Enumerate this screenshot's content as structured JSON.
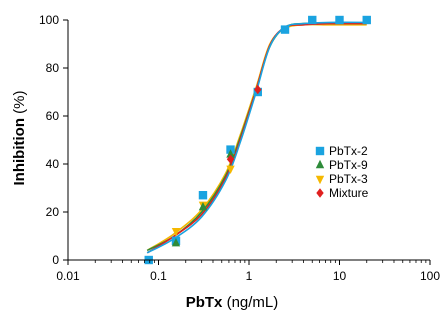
{
  "chart_data": {
    "type": "scatter",
    "title": "",
    "xlabel": {
      "bold": "PbTx",
      "unit": " (ng/mL)"
    },
    "ylabel": {
      "bold": "Inhibition",
      "unit": " (%)"
    },
    "xscale": "log",
    "xlim": [
      0.01,
      100
    ],
    "ylim": [
      0,
      100
    ],
    "xticks": [
      {
        "value": 0.01,
        "label": "0.01"
      },
      {
        "value": 0.1,
        "label": "0.1"
      },
      {
        "value": 1,
        "label": "1"
      },
      {
        "value": 10,
        "label": "10"
      },
      {
        "value": 100,
        "label": "100"
      }
    ],
    "yticks": [
      {
        "value": 0,
        "label": "0"
      },
      {
        "value": 20,
        "label": "20"
      },
      {
        "value": 40,
        "label": "40"
      },
      {
        "value": 60,
        "label": "60"
      },
      {
        "value": 80,
        "label": "80"
      },
      {
        "value": 100,
        "label": "100"
      }
    ],
    "legend_position": "right",
    "grid": false,
    "series": [
      {
        "name": "PbTx-2",
        "marker": "square",
        "color": "#1aa3e0",
        "points": [
          {
            "x": 0.078,
            "y": 0
          },
          {
            "x": 0.156,
            "y": 8
          },
          {
            "x": 0.31,
            "y": 27
          },
          {
            "x": 0.625,
            "y": 46
          },
          {
            "x": 1.25,
            "y": 70
          },
          {
            "x": 2.5,
            "y": 96
          },
          {
            "x": 5,
            "y": 100
          },
          {
            "x": 10,
            "y": 100
          },
          {
            "x": 20,
            "y": 100
          }
        ],
        "fit": [
          {
            "x": 0.075,
            "y": 3
          },
          {
            "x": 0.15,
            "y": 9
          },
          {
            "x": 0.3,
            "y": 18
          },
          {
            "x": 0.55,
            "y": 33
          },
          {
            "x": 0.8,
            "y": 49
          },
          {
            "x": 1.2,
            "y": 70
          },
          {
            "x": 1.7,
            "y": 89
          },
          {
            "x": 2.5,
            "y": 97
          },
          {
            "x": 4,
            "y": 98.5
          },
          {
            "x": 8,
            "y": 99
          },
          {
            "x": 20,
            "y": 99
          }
        ]
      },
      {
        "name": "PbTx-9",
        "marker": "triangle-up",
        "color": "#2e8b3a",
        "points": [
          {
            "x": 0.156,
            "y": 7
          },
          {
            "x": 0.31,
            "y": 22
          },
          {
            "x": 0.625,
            "y": 44
          }
        ],
        "fit": [
          {
            "x": 0.075,
            "y": 4
          },
          {
            "x": 0.15,
            "y": 10
          },
          {
            "x": 0.3,
            "y": 20
          },
          {
            "x": 0.55,
            "y": 35
          },
          {
            "x": 0.8,
            "y": 51
          },
          {
            "x": 1.2,
            "y": 71
          },
          {
            "x": 1.7,
            "y": 89
          },
          {
            "x": 2.5,
            "y": 97
          },
          {
            "x": 4,
            "y": 98.5
          },
          {
            "x": 8,
            "y": 98.5
          },
          {
            "x": 20,
            "y": 98.5
          }
        ]
      },
      {
        "name": "PbTx-3",
        "marker": "triangle-down",
        "color": "#f5b800",
        "points": [
          {
            "x": 0.156,
            "y": 12
          },
          {
            "x": 0.31,
            "y": 23
          },
          {
            "x": 0.625,
            "y": 38
          }
        ],
        "fit": [
          {
            "x": 0.075,
            "y": 4
          },
          {
            "x": 0.15,
            "y": 11
          },
          {
            "x": 0.3,
            "y": 21
          },
          {
            "x": 0.55,
            "y": 36
          },
          {
            "x": 0.8,
            "y": 52
          },
          {
            "x": 1.2,
            "y": 72
          },
          {
            "x": 1.7,
            "y": 90
          },
          {
            "x": 2.5,
            "y": 96.5
          },
          {
            "x": 4,
            "y": 98
          },
          {
            "x": 8,
            "y": 98
          },
          {
            "x": 20,
            "y": 98
          }
        ]
      },
      {
        "name": "Mixture",
        "marker": "diamond",
        "color": "#e0201f",
        "points": [
          {
            "x": 0.625,
            "y": 42
          },
          {
            "x": 1.25,
            "y": 71
          }
        ],
        "fit": [
          {
            "x": 0.075,
            "y": 3
          },
          {
            "x": 0.15,
            "y": 10
          },
          {
            "x": 0.3,
            "y": 19
          },
          {
            "x": 0.55,
            "y": 34
          },
          {
            "x": 0.8,
            "y": 50
          },
          {
            "x": 1.2,
            "y": 71
          },
          {
            "x": 1.7,
            "y": 89.5
          },
          {
            "x": 2.5,
            "y": 97
          },
          {
            "x": 4,
            "y": 98
          },
          {
            "x": 8,
            "y": 98.5
          },
          {
            "x": 20,
            "y": 98.5
          }
        ]
      }
    ]
  }
}
